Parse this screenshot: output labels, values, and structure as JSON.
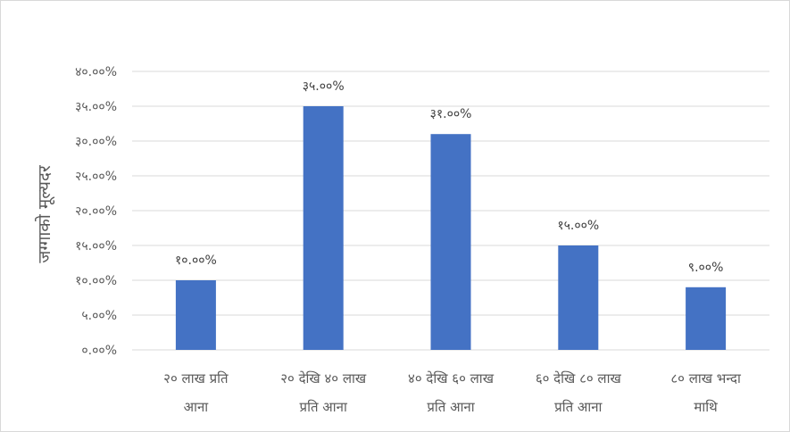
{
  "chart_data": {
    "type": "bar",
    "ylabel": "जग्गाको मूल्यदर",
    "categories": [
      [
        "२० लाख प्रति",
        "आना"
      ],
      [
        "२० देखि ४० लाख",
        "प्रति आना"
      ],
      [
        "४० देखि ६० लाख",
        "प्रति आना"
      ],
      [
        "६० देखि ८० लाख",
        "प्रति आना"
      ],
      [
        "८० लाख भन्दा",
        "माथि"
      ]
    ],
    "values": [
      10,
      35,
      31,
      15,
      9
    ],
    "data_labels": [
      "१०.००%",
      "३५.००%",
      "३१.००%",
      "१५.००%",
      "९.००%"
    ],
    "ylim": [
      0,
      40
    ],
    "yticks": [
      0,
      5,
      10,
      15,
      20,
      25,
      30,
      35,
      40
    ],
    "ytick_labels": [
      "०.००%",
      "५.००%",
      "१०.००%",
      "१५.००%",
      "२०.००%",
      "२५.००%",
      "३०.००%",
      "३५.००%",
      "४०.००%"
    ],
    "grid": true,
    "bar_color": "#4472c4",
    "grid_color": "#d9d9d9"
  }
}
